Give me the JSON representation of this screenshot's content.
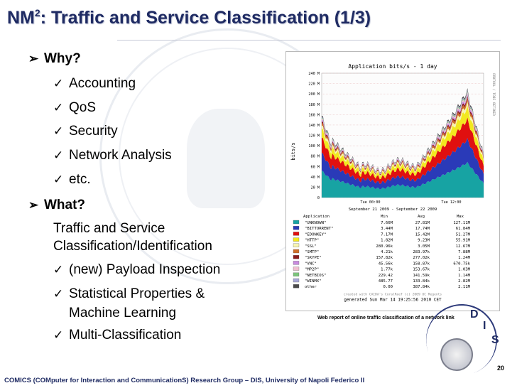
{
  "slide": {
    "title_main": "NM",
    "title_sup": "2",
    "title_rest": ": Traffic and Service Classification (1/3)",
    "why_label": "Why?",
    "why_items": [
      "Accounting",
      "QoS",
      "Security",
      "Network Analysis",
      "etc."
    ],
    "what_label": "What?",
    "what_text_line1": "Traffic and Service",
    "what_text_line2": "Classification/Identification",
    "what_items": [
      "(new) Payload Inspection",
      "Statistical Properties &",
      "Machine Learning",
      "Multi-Classification"
    ],
    "caption": "Web report of online traffic classification of a network link",
    "page_number": "20",
    "footer": "COMICS (COMputer for Interaction and CommunicationS) Research Group – DIS, University of Napoli Federico II",
    "logo_letters": [
      "D",
      "I",
      "S"
    ]
  },
  "icons": {
    "arrow": "arrow-bullet-icon",
    "check": "checkmark-bullet-icon"
  },
  "chart_data": {
    "type": "area",
    "title": "Application bits/s - 1 day",
    "ylabel": "bits/s",
    "side_label": "RRDTOOL / TOBI OETIKER",
    "ylim": [
      0,
      240
    ],
    "y_ticks": [
      "0",
      "20 M",
      "40 M",
      "60 M",
      "80 M",
      "100 M",
      "120 M",
      "140 M",
      "160 M",
      "180 M",
      "200 M",
      "220 M",
      "240 M"
    ],
    "x_ticks": [
      "Tue 00:00",
      "Tue 12:00"
    ],
    "date_range": "September 21 2009 - September 22 2009",
    "table_headers": [
      "Application",
      "Min",
      "Avg",
      "Max"
    ],
    "rows": [
      {
        "name": "\"UNKNOWN\"",
        "min": "7.66M",
        "avg": "27.81M",
        "max": "127.11M",
        "color": "#17a3a3"
      },
      {
        "name": "\"BITTORRENT\"",
        "min": "3.44M",
        "avg": "17.74M",
        "max": "61.84M",
        "color": "#2a3ab8"
      },
      {
        "name": "\"EDONKEY\"",
        "min": "7.17M",
        "avg": "15.42M",
        "max": "51.27M",
        "color": "#e01010"
      },
      {
        "name": "\"HTTP\"",
        "min": "1.82M",
        "avg": "9.23M",
        "max": "55.91M",
        "color": "#f2e81f"
      },
      {
        "name": "\"SSL\"",
        "min": "280.96k",
        "avg": "3.05M",
        "max": "12.67M",
        "color": "#f7f4b0"
      },
      {
        "name": "\"SMTP\"",
        "min": "4.21k",
        "avg": "283.97k",
        "max": "7.88M",
        "color": "#cf6f2a"
      },
      {
        "name": "\"SKYPE\"",
        "min": "157.82k",
        "avg": "277.02k",
        "max": "1.24M",
        "color": "#8b1c1c"
      },
      {
        "name": "\"VNC\"",
        "min": "45.56k",
        "avg": "158.87k",
        "max": "670.75k",
        "color": "#c98ce0"
      },
      {
        "name": "\"MP2P\"",
        "min": "1.77k",
        "avg": "153.67k",
        "max": "1.03M",
        "color": "#f0c0d0"
      },
      {
        "name": "\"NETBIOS\"",
        "min": "229.42",
        "avg": "141.59k",
        "max": "1.14M",
        "color": "#7cc47c"
      },
      {
        "name": "\"WINMX\"",
        "min": "485.77",
        "avg": "133.84k",
        "max": "2.82M",
        "color": "#a8a8d8"
      },
      {
        "name": "other",
        "min": "0.00",
        "avg": "387.84k",
        "max": "2.11M",
        "color": "#4a4a4a"
      }
    ],
    "generated": "generated Sun Mar 14 19:25:56 2010 CET",
    "created_with": "created with CAIDA's CoralReef (c) 2009 UC Regents"
  }
}
